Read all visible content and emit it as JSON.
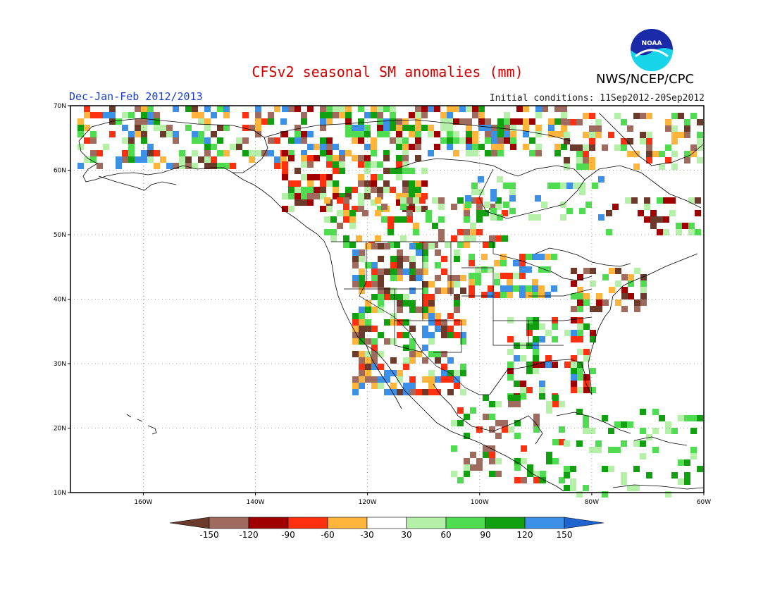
{
  "title": "CFSv2 seasonal SM anomalies (mm)",
  "organization": "NWS/NCEP/CPC",
  "logo_text": "NOAA",
  "period": "Dec-Jan-Feb 2012/2013",
  "initial_conditions": "Initial conditions: 11Sep2012-20Sep2012",
  "map": {
    "lon_range": [
      -173,
      -60
    ],
    "lat_range": [
      10,
      70
    ],
    "lat_labels": [
      "10N",
      "20N",
      "30N",
      "40N",
      "50N",
      "60N",
      "70N"
    ],
    "lon_labels": [
      "160W",
      "140W",
      "120W",
      "100W",
      "80W",
      "60W"
    ],
    "grid": true
  },
  "colorbar": {
    "labels": [
      "-150",
      "-120",
      "-90",
      "-60",
      "-30",
      "30",
      "60",
      "90",
      "120",
      "150"
    ],
    "colors": [
      "#6b3a2a",
      "#9e6b5e",
      "#a00000",
      "#ff3010",
      "#ffb43c",
      "#ffffff",
      "#b4f0a8",
      "#50dc50",
      "#10a010",
      "#3c90e8",
      "#1e64d0"
    ]
  },
  "anomaly_colors": {
    "-150": "#6b3a2a",
    "-120": "#9e6b5e",
    "-90": "#a00000",
    "-60": "#ff3010",
    "-30": "#ffb43c",
    "30": "#b4f0a8",
    "60": "#50dc50",
    "90": "#10a010",
    "120": "#3c90e8",
    "150": "#1e64d0"
  }
}
